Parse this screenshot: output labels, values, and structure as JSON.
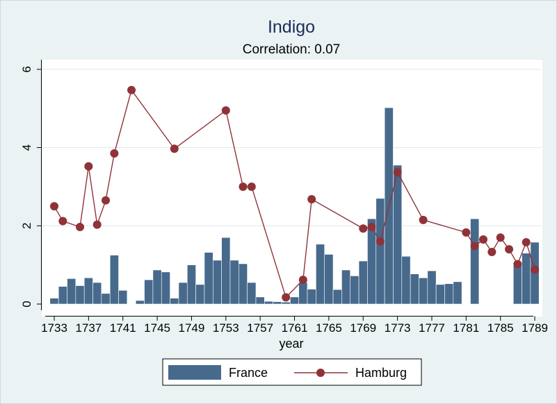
{
  "chart_data": {
    "type": "bar",
    "title": "Indigo",
    "subtitle": "Correlation: 0.07",
    "xlabel": "year",
    "ylabel": "",
    "xlim": [
      1732,
      1790
    ],
    "ylim": [
      0,
      6
    ],
    "x_ticks": [
      1733,
      1737,
      1741,
      1745,
      1749,
      1753,
      1757,
      1761,
      1765,
      1769,
      1773,
      1777,
      1781,
      1785,
      1789
    ],
    "y_ticks": [
      0,
      2,
      4,
      6
    ],
    "grid": true,
    "legend_position": "bottom",
    "colors": {
      "france": "#476a8c",
      "hamburg": "#8f3338",
      "grid": "#dde6e8"
    },
    "series": [
      {
        "name": "France",
        "type": "bar",
        "x": [
          1733,
          1734,
          1735,
          1736,
          1737,
          1738,
          1739,
          1740,
          1741,
          1743,
          1744,
          1745,
          1746,
          1747,
          1748,
          1749,
          1750,
          1751,
          1752,
          1753,
          1754,
          1755,
          1756,
          1757,
          1758,
          1759,
          1760,
          1761,
          1762,
          1763,
          1764,
          1765,
          1766,
          1767,
          1768,
          1769,
          1770,
          1771,
          1772,
          1773,
          1774,
          1775,
          1776,
          1777,
          1778,
          1779,
          1780,
          1782,
          1787,
          1788,
          1789
        ],
        "values": [
          0.15,
          0.45,
          0.65,
          0.47,
          0.67,
          0.55,
          0.27,
          1.25,
          0.35,
          0.09,
          0.62,
          0.87,
          0.82,
          0.15,
          0.55,
          1.0,
          0.5,
          1.32,
          1.12,
          1.7,
          1.12,
          1.03,
          0.55,
          0.18,
          0.07,
          0.06,
          0.05,
          0.18,
          0.55,
          0.38,
          1.53,
          1.27,
          0.37,
          0.87,
          0.72,
          1.1,
          2.18,
          2.7,
          5.02,
          3.55,
          1.22,
          0.77,
          0.67,
          0.85,
          0.5,
          0.52,
          0.57,
          2.18,
          1.05,
          1.3,
          1.58
        ]
      },
      {
        "name": "Hamburg",
        "type": "line",
        "x": [
          1733,
          1734,
          1736,
          1737,
          1738,
          1739,
          1740,
          1742,
          1747,
          1753,
          1755,
          1756,
          1760,
          1762,
          1763,
          1769,
          1770,
          1771,
          1773,
          1776,
          1781,
          1782,
          1783,
          1784,
          1785,
          1786,
          1787,
          1788,
          1789
        ],
        "values": [
          2.5,
          2.12,
          1.97,
          3.52,
          2.03,
          2.65,
          3.85,
          5.47,
          3.97,
          4.95,
          3.0,
          3.0,
          0.17,
          0.62,
          2.68,
          1.93,
          1.97,
          1.6,
          3.37,
          2.15,
          1.83,
          1.48,
          1.65,
          1.33,
          1.7,
          1.4,
          1.02,
          1.58,
          0.88
        ]
      }
    ]
  }
}
